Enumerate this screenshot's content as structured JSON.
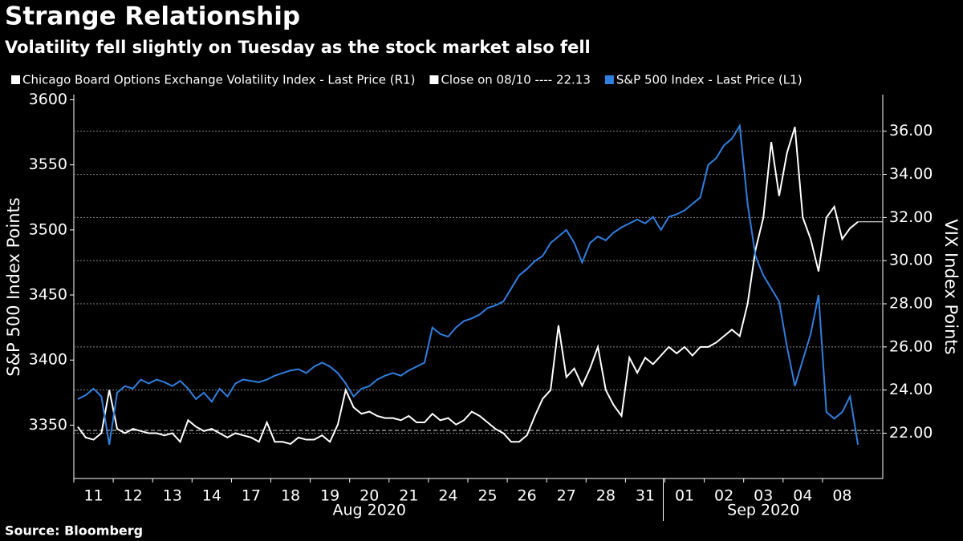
{
  "chart_data": {
    "type": "line",
    "title": "Strange Relationship",
    "subtitle": "Volatility fell slightly on Tuesday as the stock market also fell",
    "source": "Source: Bloomberg",
    "ylabel": "S&P 500 Index Points",
    "y2label": "VIX Index Points",
    "categories": [
      "11",
      "12",
      "13",
      "14",
      "17",
      "18",
      "19",
      "20",
      "21",
      "24",
      "25",
      "26",
      "27",
      "28",
      "31",
      "01",
      "02",
      "03",
      "04",
      "08"
    ],
    "month_labels": [
      "Aug 2020",
      "Sep 2020"
    ],
    "ylim": [
      3309,
      3604
    ],
    "yticks": [
      3350,
      3400,
      3450,
      3500,
      3550,
      3600
    ],
    "y2lim": [
      19.9,
      37.7
    ],
    "y2ticks": [
      {
        "value": 22,
        "label": "22.00"
      },
      {
        "value": 24,
        "label": "24.00"
      },
      {
        "value": 26,
        "label": "26.00"
      },
      {
        "value": 28,
        "label": "28.00"
      },
      {
        "value": 30,
        "label": "30.00"
      },
      {
        "value": 32,
        "label": "32.00"
      },
      {
        "value": 34,
        "label": "34.00"
      },
      {
        "value": 36,
        "label": "36.00"
      }
    ],
    "grid": true,
    "reference_line": {
      "label": "Close on 08/10 ---- 22.13",
      "value": 22.13,
      "axis": "y2"
    },
    "series": [
      {
        "name": "Chicago Board Options Exchange Volatility Index - Last Price (R1)",
        "color": "#ffffff",
        "axis": "y2",
        "values": [
          [
            22.3,
            21.8,
            21.7,
            22.0,
            24.0
          ],
          [
            22.2,
            22.0,
            22.2,
            22.1,
            22.0
          ],
          [
            22.0,
            21.9,
            22.0,
            21.6,
            22.6
          ],
          [
            22.3,
            22.1,
            22.2,
            22.0,
            21.8
          ],
          [
            22.0,
            21.9,
            21.8,
            21.6,
            22.5
          ],
          [
            21.6,
            21.6,
            21.5,
            21.8,
            21.7
          ],
          [
            21.7,
            21.9,
            21.6,
            22.4,
            24.0
          ],
          [
            23.2,
            22.9,
            23.0,
            22.8,
            22.7
          ],
          [
            22.7,
            22.6,
            22.8,
            22.5,
            22.5
          ],
          [
            22.9,
            22.6,
            22.7,
            22.4,
            22.6
          ],
          [
            23.0,
            22.8,
            22.5,
            22.2,
            22.0
          ],
          [
            21.6,
            21.6,
            21.9,
            22.8,
            23.6
          ],
          [
            24.0,
            27.0,
            24.6,
            25.0,
            24.2
          ],
          [
            25.0,
            26.0,
            24.0,
            23.3,
            22.8
          ],
          [
            25.5,
            24.8,
            25.5,
            25.2,
            25.6
          ],
          [
            26.0,
            25.7,
            26.0,
            25.6,
            26.0
          ],
          [
            26.0,
            26.2,
            26.5,
            26.8,
            26.5
          ],
          [
            28.0,
            30.5,
            32.0,
            35.5,
            33.0
          ],
          [
            35.0,
            36.2,
            32.0,
            31.0,
            29.5
          ],
          [
            32.0,
            32.5,
            31.0,
            31.5,
            31.8
          ]
        ]
      },
      {
        "name": "S&P 500 Index - Last Price (L1)",
        "color": "#2f7fe0",
        "axis": "y",
        "values": [
          [
            3370,
            3373,
            3378,
            3372,
            3335
          ],
          [
            3375,
            3380,
            3378,
            3385,
            3382
          ],
          [
            3385,
            3383,
            3380,
            3384,
            3378
          ],
          [
            3370,
            3375,
            3368,
            3378,
            3372
          ],
          [
            3382,
            3385,
            3384,
            3383,
            3385
          ],
          [
            3388,
            3390,
            3392,
            3393,
            3390
          ],
          [
            3395,
            3398,
            3395,
            3390,
            3382
          ],
          [
            3372,
            3378,
            3380,
            3385,
            3388
          ],
          [
            3390,
            3388,
            3392,
            3395,
            3398
          ],
          [
            3425,
            3420,
            3418,
            3425,
            3430
          ],
          [
            3432,
            3435,
            3440,
            3442,
            3445
          ],
          [
            3455,
            3465,
            3470,
            3476,
            3480
          ],
          [
            3490,
            3495,
            3500,
            3490,
            3475
          ],
          [
            3490,
            3495,
            3492,
            3498,
            3502
          ],
          [
            3505,
            3508,
            3505,
            3510,
            3500
          ],
          [
            3510,
            3512,
            3515,
            3520,
            3525
          ],
          [
            3550,
            3555,
            3565,
            3570,
            3580
          ],
          [
            3520,
            3480,
            3465,
            3455,
            3445
          ],
          [
            3410,
            3380,
            3400,
            3420,
            3450
          ],
          [
            3360,
            3355,
            3360,
            3372,
            3335
          ]
        ]
      }
    ]
  }
}
